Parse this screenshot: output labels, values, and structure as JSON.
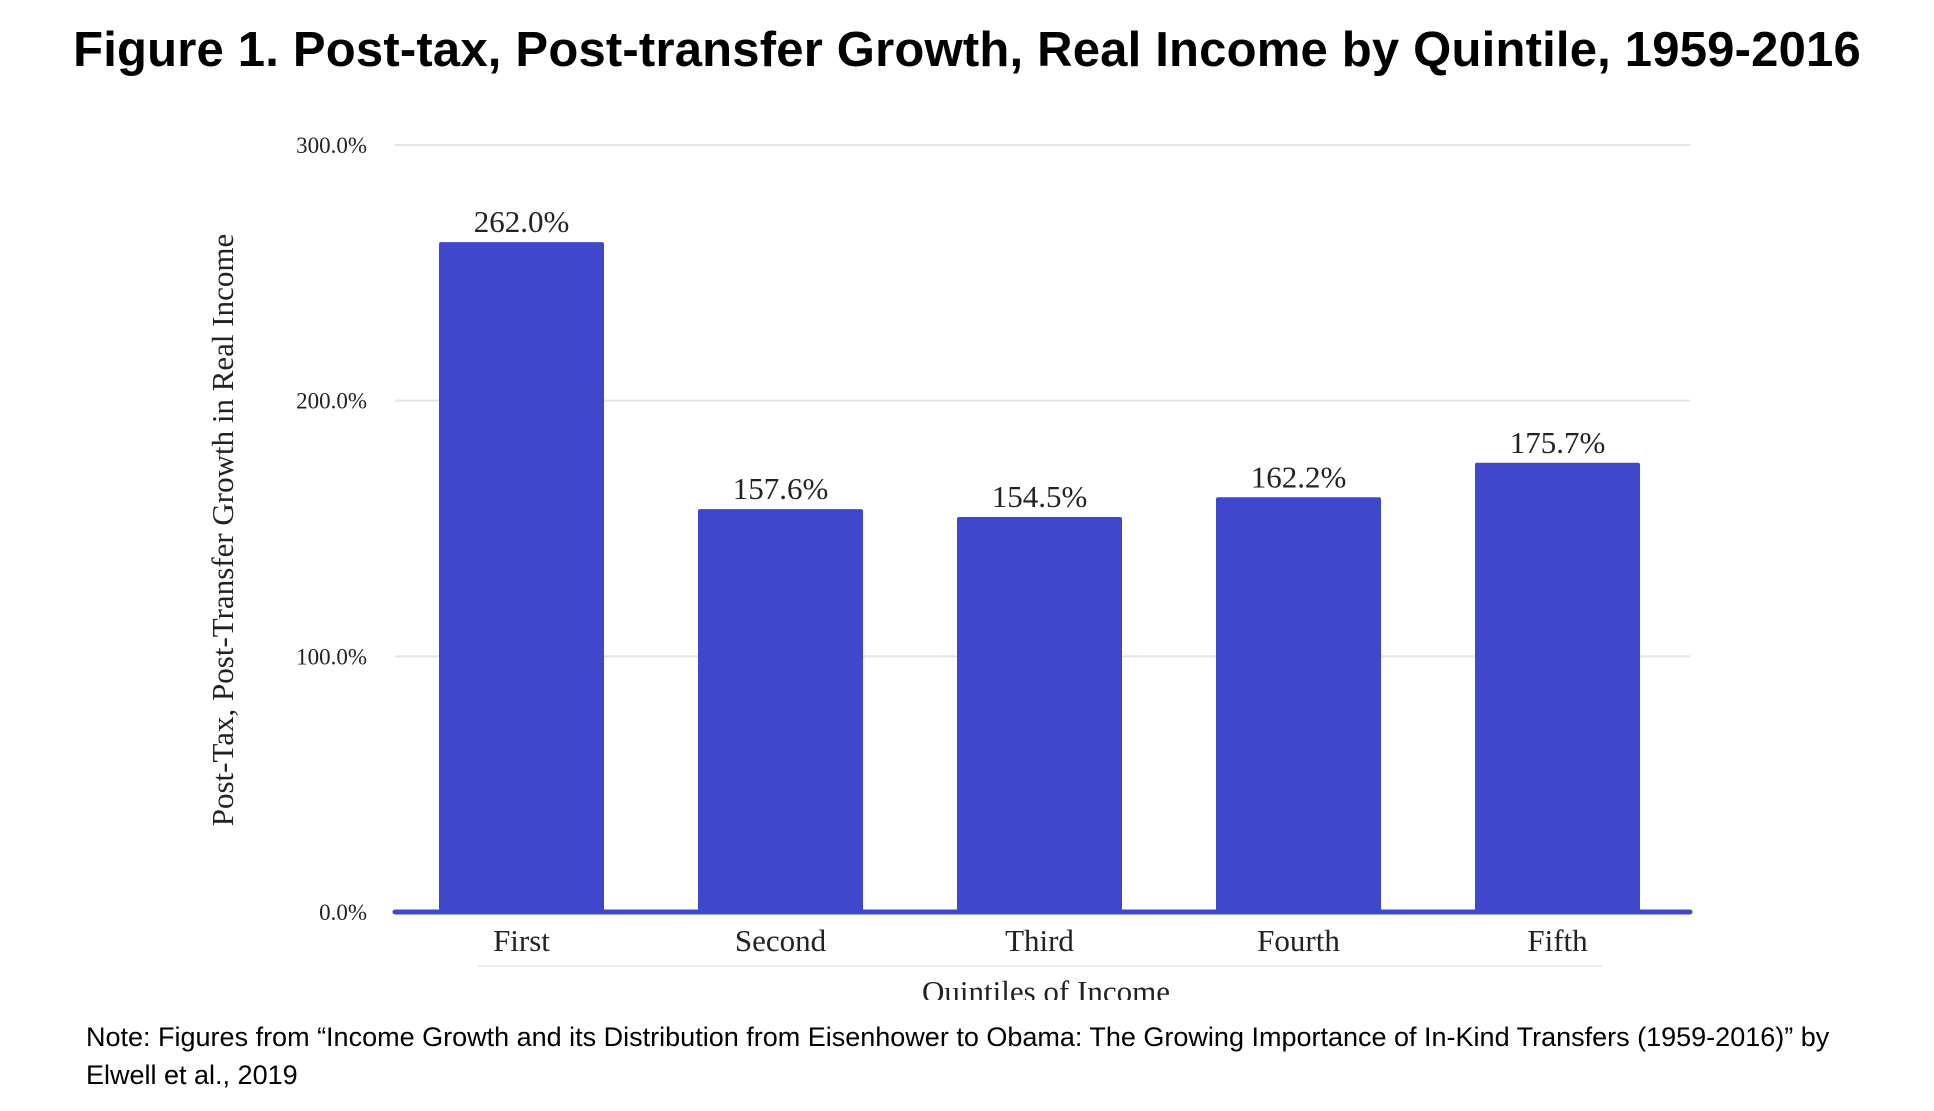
{
  "title": "Figure 1. Post-tax, Post-transfer Growth, Real Income by Quintile, 1959-2016",
  "note": "Note: Figures from “Income Growth and its Distribution from Eisenhower to Obama: The Growing Importance of In-Kind Transfers (1959-2016)” by Elwell et al., 2019",
  "colors": {
    "bar": "#3f48cc",
    "gridline": "#e4e4e4",
    "text": "#222222"
  },
  "chart_data": {
    "type": "bar",
    "categories": [
      "First",
      "Second",
      "Third",
      "Fourth",
      "Fifth"
    ],
    "values": [
      262.0,
      157.6,
      154.5,
      162.2,
      175.7
    ],
    "data_labels": [
      "262.0%",
      "157.6%",
      "154.5%",
      "162.2%",
      "175.7%"
    ],
    "xlabel": "Quintiles of Income",
    "ylabel": "Post-Tax, Post-Transfer Growth in Real Income",
    "ylim": [
      0,
      300
    ],
    "yticks": [
      0,
      100,
      200,
      300
    ],
    "ytick_labels": [
      "0.0%",
      "100.0%",
      "200.0%",
      "300.0%"
    ],
    "grid": true,
    "legend": "none"
  }
}
